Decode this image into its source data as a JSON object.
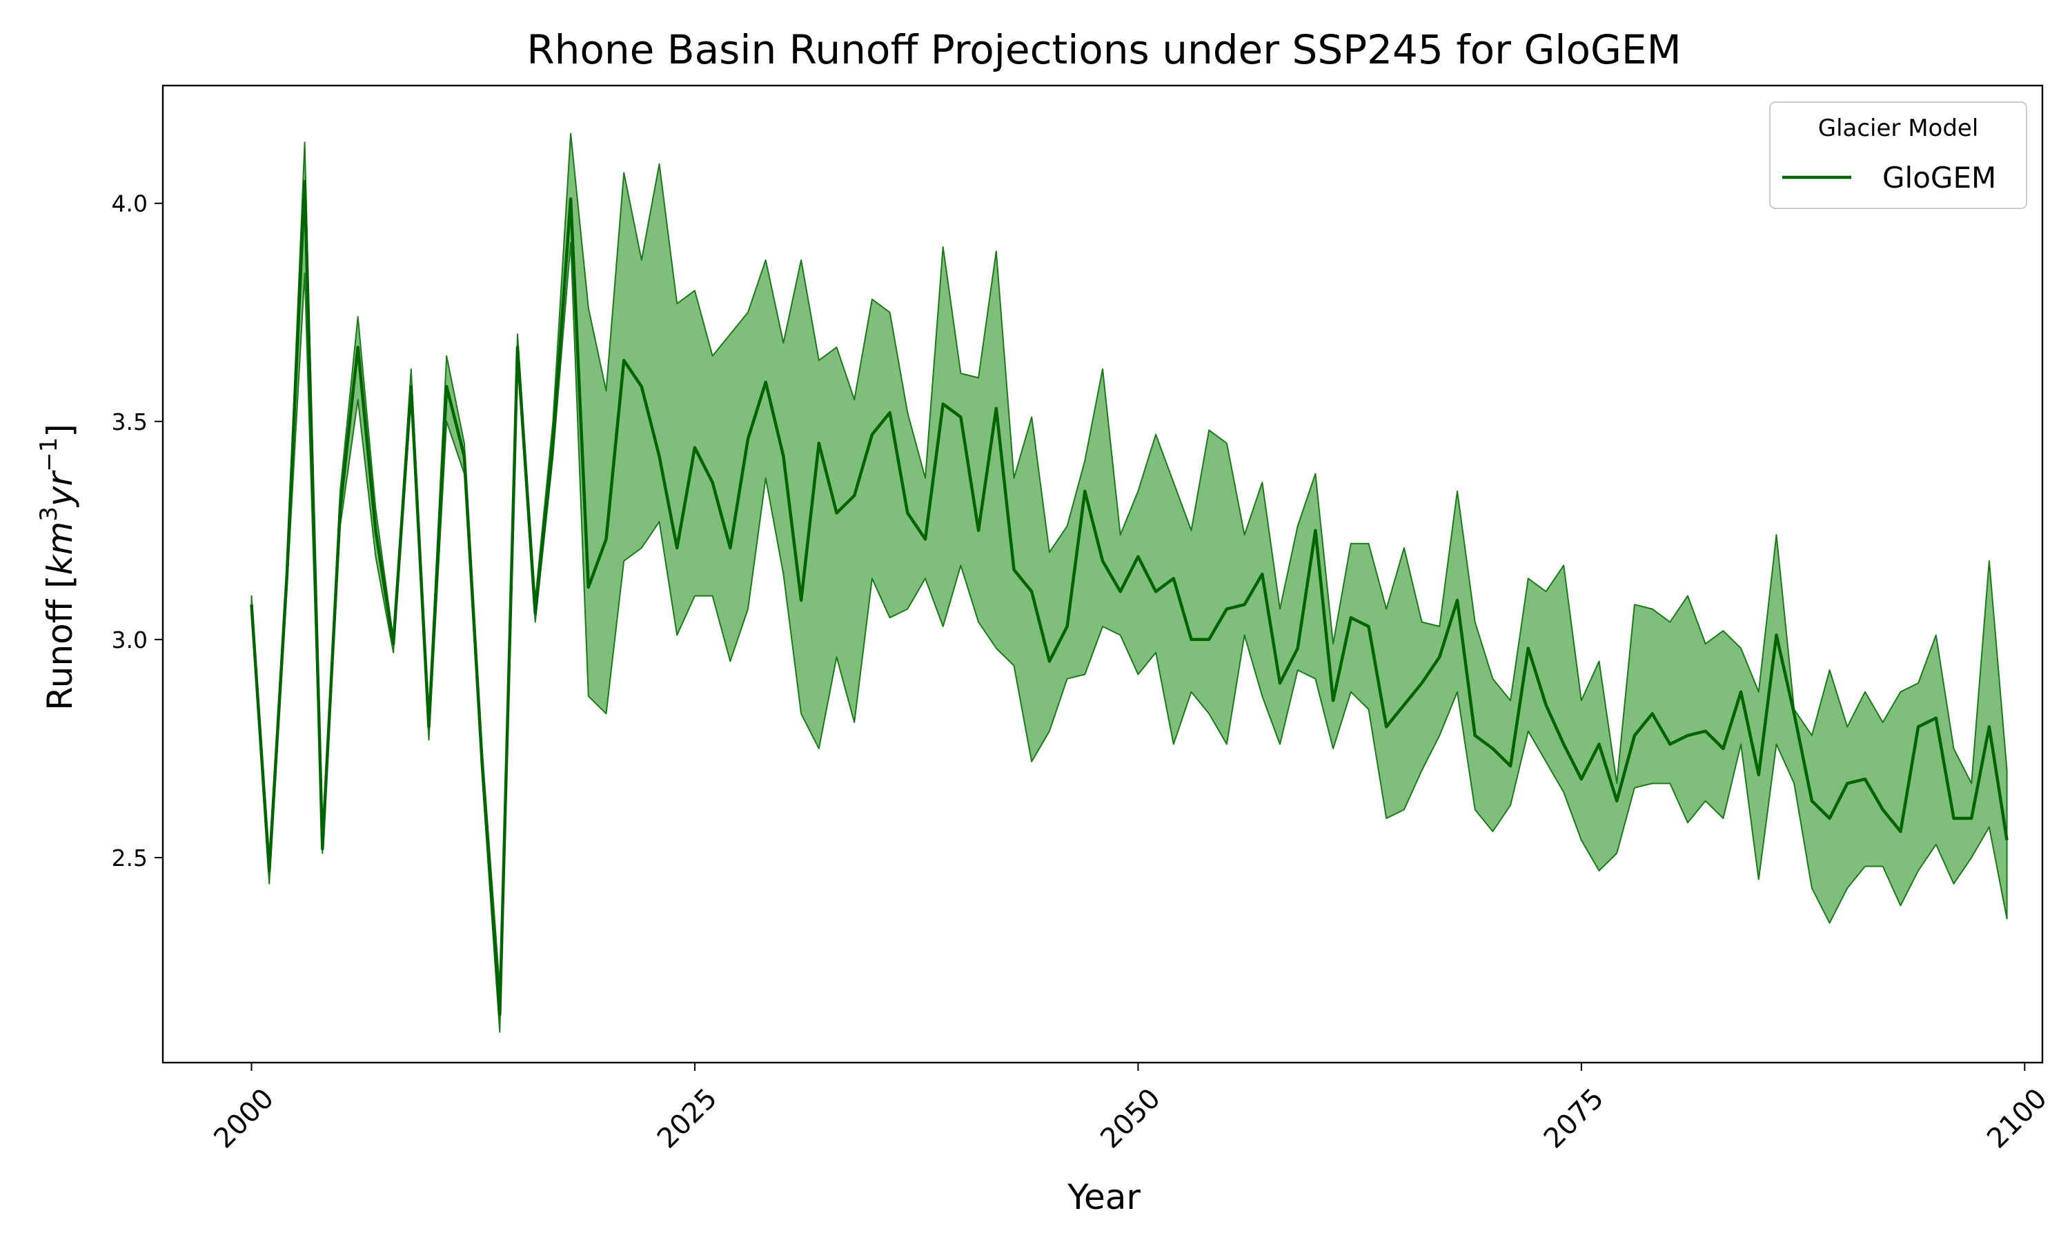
{
  "chart_data": {
    "type": "line",
    "title": "Rhone Basin Runoff Projections under SSP245 for GloGEM",
    "xlabel": "Year",
    "ylabel": "Runoff [km³yr⁻¹]",
    "ylabel_parts": {
      "prefix": "Runoff [",
      "base": "km",
      "exp1": "3",
      "mid": "yr",
      "exp2": "−1",
      "suffix": "]"
    },
    "xlim": [
      1995,
      2101
    ],
    "ylim": [
      2.03,
      4.27
    ],
    "xticks": [
      2000,
      2025,
      2050,
      2075,
      2100
    ],
    "xtick_labels": [
      "2000",
      "2025",
      "2050",
      "2075",
      "2100"
    ],
    "yticks": [
      2.5,
      3.0,
      3.5,
      4.0
    ],
    "ytick_labels": [
      "2.5",
      "3.0",
      "3.5",
      "4.0"
    ],
    "grid": false,
    "legend": {
      "title": "Glacier Model",
      "placement": "top-right"
    },
    "colors": {
      "line": "#006400",
      "band_fill": "#7fbf7b",
      "band_edge": "#1a7a1a"
    },
    "x_start": 2000,
    "series": [
      {
        "name": "GloGEM",
        "mean": [
          3.08,
          2.47,
          3.15,
          4.05,
          2.52,
          3.3,
          3.67,
          3.25,
          2.99,
          3.58,
          2.8,
          3.58,
          3.42,
          2.72,
          2.14,
          3.67,
          3.06,
          3.45,
          4.01,
          3.12,
          3.23,
          3.64,
          3.58,
          3.42,
          3.21,
          3.44,
          3.36,
          3.21,
          3.46,
          3.59,
          3.42,
          3.09,
          3.45,
          3.29,
          3.33,
          3.47,
          3.52,
          3.29,
          3.23,
          3.54,
          3.51,
          3.25,
          3.53,
          3.16,
          3.11,
          2.95,
          3.03,
          3.34,
          3.18,
          3.11,
          3.19,
          3.11,
          3.14,
          3.0,
          3.0,
          3.07,
          3.08,
          3.15,
          2.9,
          2.98,
          3.25,
          2.86,
          3.05,
          3.03,
          2.8,
          2.85,
          2.9,
          2.96,
          3.09,
          2.78,
          2.75,
          2.71,
          2.98,
          2.85,
          2.76,
          2.68,
          2.76,
          2.63,
          2.78,
          2.83,
          2.76,
          2.78,
          2.79,
          2.75,
          2.88,
          2.69,
          3.01,
          2.83,
          2.63,
          2.59,
          2.67,
          2.68,
          2.61,
          2.56,
          2.8,
          2.82,
          2.59,
          2.59,
          2.8,
          2.54
        ],
        "upper": [
          3.1,
          2.5,
          3.17,
          4.14,
          2.54,
          3.34,
          3.74,
          3.3,
          3.0,
          3.62,
          2.82,
          3.65,
          3.45,
          2.75,
          2.2,
          3.7,
          3.09,
          3.5,
          4.16,
          3.76,
          3.57,
          4.07,
          3.87,
          4.09,
          3.77,
          3.8,
          3.65,
          3.7,
          3.75,
          3.87,
          3.68,
          3.87,
          3.64,
          3.67,
          3.55,
          3.78,
          3.75,
          3.52,
          3.37,
          3.9,
          3.61,
          3.6,
          3.89,
          3.37,
          3.51,
          3.2,
          3.26,
          3.41,
          3.62,
          3.24,
          3.34,
          3.47,
          3.36,
          3.25,
          3.48,
          3.45,
          3.24,
          3.36,
          3.07,
          3.26,
          3.38,
          2.99,
          3.22,
          3.22,
          3.07,
          3.21,
          3.04,
          3.03,
          3.34,
          3.04,
          2.91,
          2.86,
          3.14,
          3.11,
          3.17,
          2.86,
          2.95,
          2.67,
          3.08,
          3.07,
          3.04,
          3.1,
          2.99,
          3.02,
          2.98,
          2.88,
          3.24,
          2.84,
          2.78,
          2.93,
          2.8,
          2.88,
          2.81,
          2.88,
          2.9,
          3.01,
          2.75,
          2.67,
          3.18,
          2.7
        ],
        "lower": [
          3.06,
          2.44,
          3.12,
          3.84,
          2.51,
          3.26,
          3.55,
          3.19,
          2.97,
          3.55,
          2.77,
          3.5,
          3.38,
          2.69,
          2.1,
          3.64,
          3.04,
          3.42,
          3.91,
          2.87,
          2.83,
          3.18,
          3.21,
          3.27,
          3.01,
          3.1,
          3.1,
          2.95,
          3.07,
          3.37,
          3.15,
          2.83,
          2.75,
          2.96,
          2.81,
          3.14,
          3.05,
          3.07,
          3.14,
          3.03,
          3.17,
          3.04,
          2.98,
          2.94,
          2.72,
          2.79,
          2.91,
          2.92,
          3.03,
          3.01,
          2.92,
          2.97,
          2.76,
          2.88,
          2.83,
          2.76,
          3.01,
          2.87,
          2.76,
          2.93,
          2.91,
          2.75,
          2.88,
          2.84,
          2.59,
          2.61,
          2.7,
          2.78,
          2.88,
          2.61,
          2.56,
          2.62,
          2.79,
          2.72,
          2.65,
          2.54,
          2.47,
          2.51,
          2.66,
          2.67,
          2.67,
          2.58,
          2.63,
          2.59,
          2.76,
          2.45,
          2.76,
          2.67,
          2.43,
          2.35,
          2.43,
          2.48,
          2.48,
          2.39,
          2.47,
          2.53,
          2.44,
          2.5,
          2.57,
          2.36
        ]
      }
    ]
  }
}
